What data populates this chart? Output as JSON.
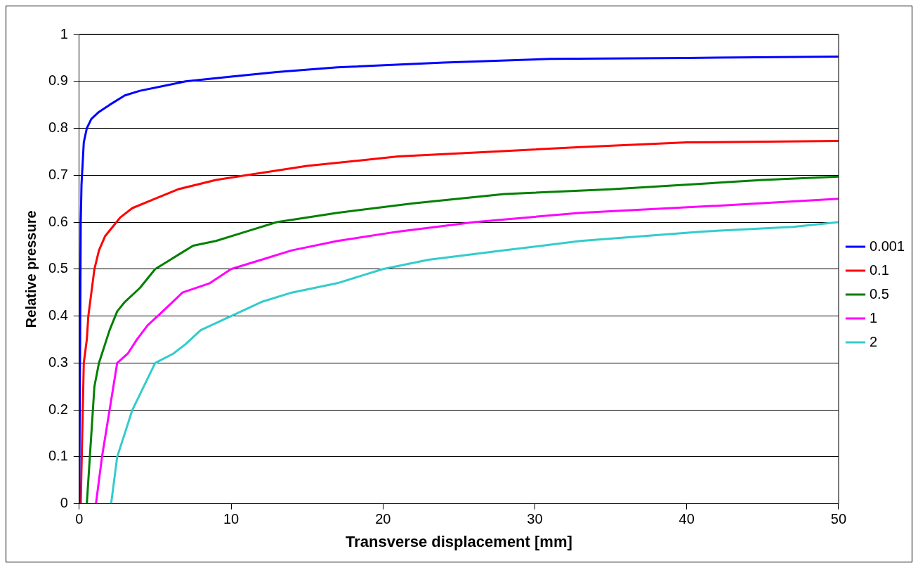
{
  "chart_data": {
    "type": "line",
    "xlabel": "Transverse displacement [mm]",
    "ylabel": "Relative pressure",
    "xlim": [
      0,
      50
    ],
    "xticks": [
      0,
      10,
      20,
      30,
      40,
      50
    ],
    "ylim": [
      0,
      1
    ],
    "yticks": [
      0,
      0.1,
      0.2,
      0.3,
      0.4,
      0.5,
      0.6,
      0.7,
      0.8,
      0.9,
      1
    ],
    "grid": "y",
    "legend": "right",
    "marker": "none",
    "line_style": "solid",
    "series": [
      {
        "name": "0.001",
        "color": "#0000ff",
        "x": [
          0,
          0.05,
          0.1,
          0.15,
          0.3,
          0.5,
          0.8,
          1.3,
          2,
          3,
          4,
          5.5,
          7,
          10,
          13,
          17,
          24,
          31,
          40,
          50
        ],
        "values": [
          0,
          0.3,
          0.6,
          0.68,
          0.77,
          0.8,
          0.82,
          0.835,
          0.85,
          0.87,
          0.88,
          0.89,
          0.9,
          0.91,
          0.92,
          0.93,
          0.94,
          0.948,
          0.95,
          0.953
        ]
      },
      {
        "name": "0.1",
        "color": "#ff0000",
        "x": [
          0.1,
          0.2,
          0.3,
          0.5,
          0.6,
          0.8,
          1,
          1.3,
          1.7,
          2.2,
          2.7,
          3.5,
          5,
          6.5,
          9,
          11,
          15,
          21,
          27,
          33,
          40,
          50
        ],
        "values": [
          0,
          0.15,
          0.3,
          0.35,
          0.4,
          0.45,
          0.5,
          0.54,
          0.57,
          0.59,
          0.61,
          0.63,
          0.65,
          0.67,
          0.69,
          0.7,
          0.72,
          0.74,
          0.75,
          0.76,
          0.77,
          0.773
        ]
      },
      {
        "name": "0.5",
        "color": "#008000",
        "x": [
          0.5,
          0.8,
          1,
          1.3,
          1.6,
          2,
          2.5,
          3,
          4,
          5,
          6,
          7.5,
          9,
          11,
          13,
          17,
          22,
          28,
          35,
          45,
          50
        ],
        "values": [
          0,
          0.15,
          0.25,
          0.3,
          0.33,
          0.37,
          0.41,
          0.43,
          0.46,
          0.5,
          0.52,
          0.55,
          0.56,
          0.58,
          0.6,
          0.62,
          0.64,
          0.66,
          0.67,
          0.69,
          0.697
        ]
      },
      {
        "name": "1",
        "color": "#ff00ff",
        "x": [
          1.1,
          1.5,
          2,
          2.5,
          3.2,
          3.8,
          4.5,
          5.5,
          6.8,
          8.6,
          10,
          12,
          14,
          17,
          21,
          26,
          33,
          42,
          50
        ],
        "values": [
          0,
          0.1,
          0.2,
          0.3,
          0.32,
          0.35,
          0.38,
          0.41,
          0.45,
          0.47,
          0.5,
          0.52,
          0.54,
          0.56,
          0.58,
          0.6,
          0.62,
          0.635,
          0.65
        ]
      },
      {
        "name": "2",
        "color": "#33cccc",
        "x": [
          2.1,
          2.5,
          3.5,
          5,
          6.2,
          7,
          8,
          10,
          12,
          14,
          17,
          20,
          23,
          28,
          33,
          41,
          47,
          50
        ],
        "values": [
          0,
          0.1,
          0.2,
          0.3,
          0.32,
          0.34,
          0.37,
          0.4,
          0.43,
          0.45,
          0.47,
          0.5,
          0.52,
          0.54,
          0.56,
          0.58,
          0.59,
          0.6
        ]
      }
    ]
  }
}
